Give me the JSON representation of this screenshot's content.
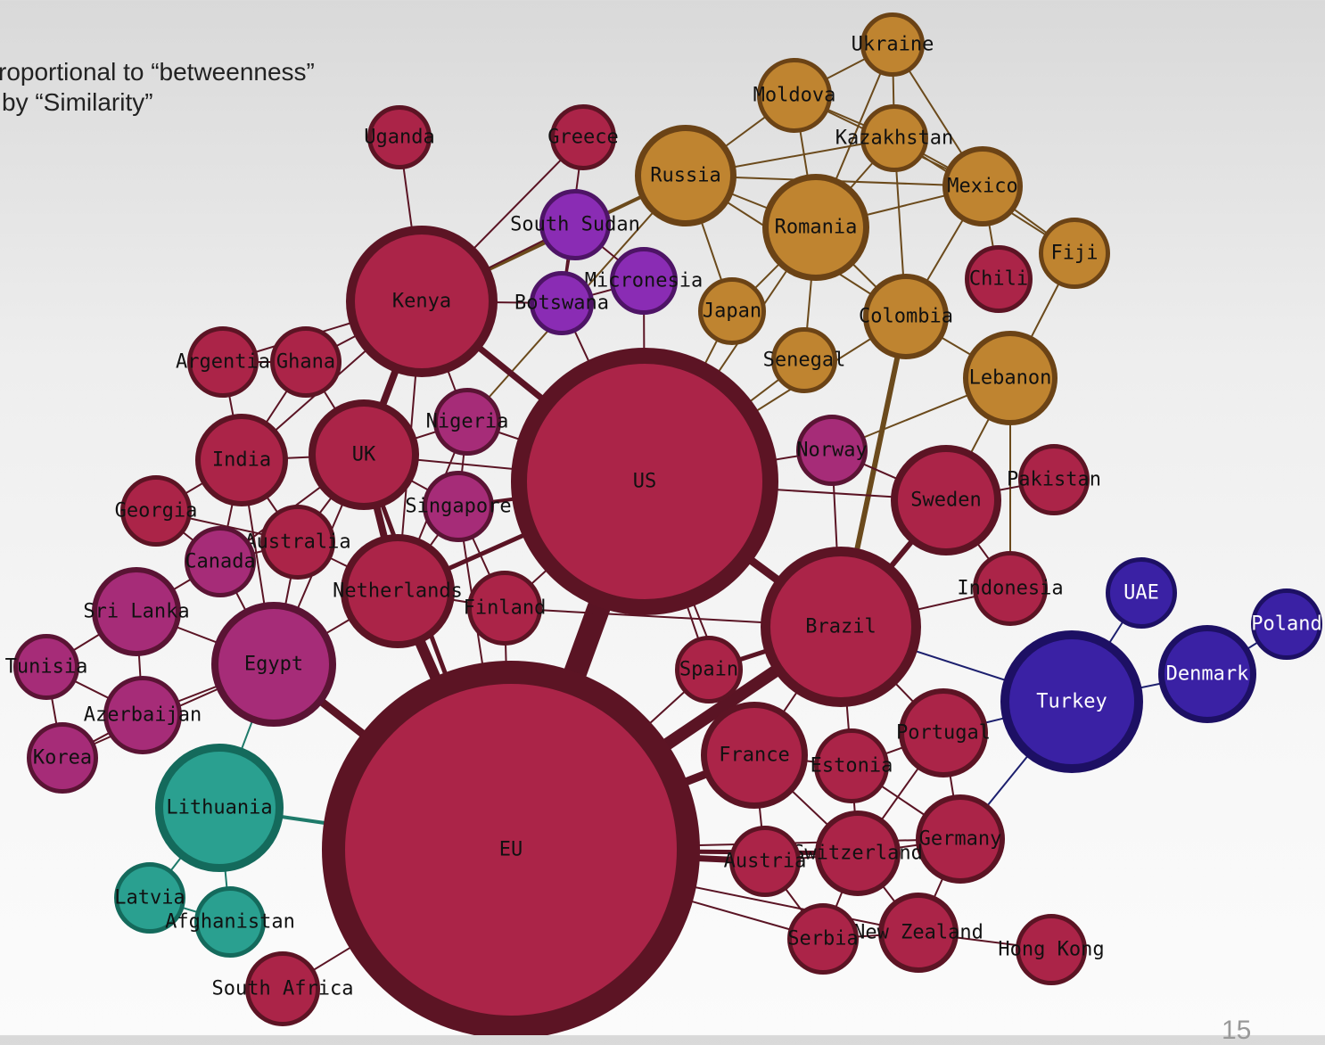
{
  "caption": {
    "line1": "roportional to “betweenness”",
    "line2": "by “Similarity”"
  },
  "page_number": "15",
  "colors": {
    "crimson": {
      "fill": "#ab2448",
      "stroke": "#5c1424"
    },
    "magenta": {
      "fill": "#a62c78",
      "stroke": "#5a1434"
    },
    "gold": {
      "fill": "#bf8430",
      "stroke": "#6b4316"
    },
    "purple": {
      "fill": "#8a2cb4",
      "stroke": "#4e1466"
    },
    "blue": {
      "fill": "#3a21a4",
      "stroke": "#1d1064"
    },
    "teal": {
      "fill": "#2aa090",
      "stroke": "#146a5c"
    },
    "edge": "#5a1424",
    "edge_gold": "#6b4a1c",
    "edge_teal": "#1e7a6a",
    "edge_blue": "#1c1f6e",
    "label": "#111111",
    "label_light": "#ffffff"
  },
  "nodes": [
    {
      "id": "Ukraine",
      "label": "Ukraine",
      "group": "gold"
    },
    {
      "id": "Moldova",
      "label": "Moldova",
      "group": "gold"
    },
    {
      "id": "Kazakhstan",
      "label": "Kazakhstan",
      "group": "gold"
    },
    {
      "id": "Russia",
      "label": "Russia",
      "group": "gold"
    },
    {
      "id": "Mexico",
      "label": "Mexico",
      "group": "gold"
    },
    {
      "id": "Romania",
      "label": "Romania",
      "group": "gold"
    },
    {
      "id": "Fiji",
      "label": "Fiji",
      "group": "gold"
    },
    {
      "id": "Japan",
      "label": "Japan",
      "group": "gold"
    },
    {
      "id": "Colombia",
      "label": "Colombia",
      "group": "gold"
    },
    {
      "id": "Senegal",
      "label": "Senegal",
      "group": "gold"
    },
    {
      "id": "Lebanon",
      "label": "Lebanon",
      "group": "gold"
    },
    {
      "id": "Uganda",
      "label": "Uganda",
      "group": "crimson"
    },
    {
      "id": "Greece",
      "label": "Greece",
      "group": "crimson"
    },
    {
      "id": "SouthSudan",
      "label": "South Sudan",
      "group": "purple"
    },
    {
      "id": "Micronesia",
      "label": "Micronesia",
      "group": "purple"
    },
    {
      "id": "Botswana",
      "label": "Botswana",
      "group": "purple"
    },
    {
      "id": "Kenya",
      "label": "Kenya",
      "group": "crimson"
    },
    {
      "id": "Chili",
      "label": "Chili",
      "group": "crimson"
    },
    {
      "id": "Argentia",
      "label": "Argentia",
      "group": "crimson"
    },
    {
      "id": "Ghana",
      "label": "Ghana",
      "group": "crimson"
    },
    {
      "id": "India",
      "label": "India",
      "group": "crimson"
    },
    {
      "id": "UK",
      "label": "UK",
      "group": "crimson"
    },
    {
      "id": "Nigeria",
      "label": "Nigeria",
      "group": "magenta"
    },
    {
      "id": "US",
      "label": "US",
      "group": "crimson"
    },
    {
      "id": "Norway",
      "label": "Norway",
      "group": "magenta"
    },
    {
      "id": "Pakistan",
      "label": "Pakistan",
      "group": "crimson"
    },
    {
      "id": "Sweden",
      "label": "Sweden",
      "group": "crimson"
    },
    {
      "id": "Georgia",
      "label": "Georgia",
      "group": "crimson"
    },
    {
      "id": "Singapore",
      "label": "Singapore",
      "group": "magenta"
    },
    {
      "id": "Australia",
      "label": "Australia",
      "group": "crimson"
    },
    {
      "id": "Canada",
      "label": "Canada",
      "group": "magenta"
    },
    {
      "id": "Netherlands",
      "label": "Netherlands",
      "group": "crimson"
    },
    {
      "id": "Finland",
      "label": "Finland",
      "group": "crimson"
    },
    {
      "id": "Indonesia",
      "label": "Indonesia",
      "group": "crimson"
    },
    {
      "id": "UAE",
      "label": "UAE",
      "group": "blue"
    },
    {
      "id": "Poland",
      "label": "Poland",
      "group": "blue"
    },
    {
      "id": "SriLanka",
      "label": "Sri Lanka",
      "group": "magenta"
    },
    {
      "id": "Egypt",
      "label": "Egypt",
      "group": "magenta"
    },
    {
      "id": "Brazil",
      "label": "Brazil",
      "group": "crimson"
    },
    {
      "id": "Tunisia",
      "label": "Tunisia",
      "group": "magenta"
    },
    {
      "id": "Spain",
      "label": "Spain",
      "group": "crimson"
    },
    {
      "id": "Denmark",
      "label": "Denmark",
      "group": "blue"
    },
    {
      "id": "Turkey",
      "label": "Turkey",
      "group": "blue"
    },
    {
      "id": "Azerbaijan",
      "label": "Azerbaijan",
      "group": "magenta"
    },
    {
      "id": "Portugal",
      "label": "Portugal",
      "group": "crimson"
    },
    {
      "id": "Korea",
      "label": "Korea",
      "group": "magenta"
    },
    {
      "id": "France",
      "label": "France",
      "group": "crimson"
    },
    {
      "id": "Estonia",
      "label": "Estonia",
      "group": "crimson"
    },
    {
      "id": "Lithuania",
      "label": "Lithuania",
      "group": "teal"
    },
    {
      "id": "EU",
      "label": "EU",
      "group": "crimson"
    },
    {
      "id": "Germany",
      "label": "Germany",
      "group": "crimson"
    },
    {
      "id": "Austria",
      "label": "Austria",
      "group": "crimson"
    },
    {
      "id": "Switzerland",
      "label": "Switzerland",
      "group": "crimson"
    },
    {
      "id": "Latvia",
      "label": "Latvia",
      "group": "teal"
    },
    {
      "id": "Afghanistan",
      "label": "Afghanistan",
      "group": "teal"
    },
    {
      "id": "Serbia",
      "label": "Serbia",
      "group": "crimson"
    },
    {
      "id": "NewZealand",
      "label": "New Zealand",
      "group": "crimson"
    },
    {
      "id": "HongKong",
      "label": "Hong Kong",
      "group": "crimson"
    },
    {
      "id": "SouthAfrica",
      "label": "South Africa",
      "group": "crimson"
    }
  ],
  "edges": [
    [
      "Ukraine",
      "Moldova"
    ],
    [
      "Ukraine",
      "Kazakhstan"
    ],
    [
      "Ukraine",
      "Romania"
    ],
    [
      "Ukraine",
      "Mexico"
    ],
    [
      "Moldova",
      "Kazakhstan"
    ],
    [
      "Moldova",
      "Russia"
    ],
    [
      "Moldova",
      "Romania"
    ],
    [
      "Moldova",
      "Mexico"
    ],
    [
      "Kazakhstan",
      "Russia"
    ],
    [
      "Kazakhstan",
      "Romania"
    ],
    [
      "Kazakhstan",
      "Mexico"
    ],
    [
      "Kazakhstan",
      "Colombia"
    ],
    [
      "Kazakhstan",
      "Fiji"
    ],
    [
      "Russia",
      "Romania"
    ],
    [
      "Russia",
      "Japan"
    ],
    [
      "Russia",
      "Colombia"
    ],
    [
      "Russia",
      "Mexico"
    ],
    [
      "Russia",
      "Kenya"
    ],
    [
      "Russia",
      "Nigeria"
    ],
    [
      "Romania",
      "Mexico"
    ],
    [
      "Romania",
      "Japan"
    ],
    [
      "Romania",
      "Senegal"
    ],
    [
      "Romania",
      "Colombia"
    ],
    [
      "Romania",
      "US"
    ],
    [
      "Mexico",
      "Colombia"
    ],
    [
      "Mexico",
      "Fiji"
    ],
    [
      "Mexico",
      "Chili"
    ],
    [
      "Fiji",
      "Lebanon"
    ],
    [
      "Colombia",
      "Lebanon"
    ],
    [
      "Colombia",
      "Brazil"
    ],
    [
      "Colombia",
      "US"
    ],
    [
      "Japan",
      "US"
    ],
    [
      "Senegal",
      "US"
    ],
    [
      "Lebanon",
      "Norway"
    ],
    [
      "Lebanon",
      "Indonesia"
    ],
    [
      "Lebanon",
      "Sweden"
    ],
    [
      "Uganda",
      "Kenya"
    ],
    [
      "Greece",
      "Botswana"
    ],
    [
      "Greece",
      "Kenya"
    ],
    [
      "SouthSudan",
      "Botswana"
    ],
    [
      "SouthSudan",
      "Micronesia"
    ],
    [
      "SouthSudan",
      "Kenya"
    ],
    [
      "Micronesia",
      "Botswana"
    ],
    [
      "Micronesia",
      "US"
    ],
    [
      "Botswana",
      "US"
    ],
    [
      "Botswana",
      "Kenya"
    ],
    [
      "Kenya",
      "US"
    ],
    [
      "Kenya",
      "UK"
    ],
    [
      "Kenya",
      "India"
    ],
    [
      "Kenya",
      "Ghana"
    ],
    [
      "Kenya",
      "Nigeria"
    ],
    [
      "Kenya",
      "Netherlands"
    ],
    [
      "Kenya",
      "Argentia"
    ],
    [
      "Argentia",
      "Ghana"
    ],
    [
      "Argentia",
      "India"
    ],
    [
      "Ghana",
      "UK"
    ],
    [
      "Ghana",
      "India"
    ],
    [
      "India",
      "UK"
    ],
    [
      "India",
      "Georgia"
    ],
    [
      "India",
      "Canada"
    ],
    [
      "India",
      "Australia"
    ],
    [
      "India",
      "Egypt"
    ],
    [
      "UK",
      "US"
    ],
    [
      "UK",
      "Netherlands"
    ],
    [
      "UK",
      "Australia"
    ],
    [
      "UK",
      "Singapore"
    ],
    [
      "UK",
      "EU"
    ],
    [
      "UK",
      "Nigeria"
    ],
    [
      "UK",
      "Canada"
    ],
    [
      "UK",
      "Egypt"
    ],
    [
      "Nigeria",
      "US"
    ],
    [
      "Nigeria",
      "Singapore"
    ],
    [
      "Nigeria",
      "Netherlands"
    ],
    [
      "US",
      "EU"
    ],
    [
      "US",
      "Brazil"
    ],
    [
      "US",
      "Netherlands"
    ],
    [
      "US",
      "Singapore"
    ],
    [
      "US",
      "Finland"
    ],
    [
      "US",
      "Norway"
    ],
    [
      "US",
      "Spain"
    ],
    [
      "US",
      "France"
    ],
    [
      "US",
      "Sweden"
    ],
    [
      "Norway",
      "Sweden"
    ],
    [
      "Norway",
      "Brazil"
    ],
    [
      "Pakistan",
      "Sweden"
    ],
    [
      "Sweden",
      "Brazil"
    ],
    [
      "Sweden",
      "Indonesia"
    ],
    [
      "Georgia",
      "Canada"
    ],
    [
      "Georgia",
      "Australia"
    ],
    [
      "Singapore",
      "Netherlands"
    ],
    [
      "Singapore",
      "Finland"
    ],
    [
      "Singapore",
      "EU"
    ],
    [
      "Australia",
      "Canada"
    ],
    [
      "Australia",
      "Netherlands"
    ],
    [
      "Australia",
      "Egypt"
    ],
    [
      "Canada",
      "Egypt"
    ],
    [
      "Canada",
      "SriLanka"
    ],
    [
      "Netherlands",
      "EU"
    ],
    [
      "Netherlands",
      "Finland"
    ],
    [
      "Netherlands",
      "Egypt"
    ],
    [
      "Finland",
      "EU"
    ],
    [
      "Finland",
      "Brazil"
    ],
    [
      "Indonesia",
      "Brazil"
    ],
    [
      "UAE",
      "Turkey"
    ],
    [
      "Poland",
      "Denmark"
    ],
    [
      "Denmark",
      "Turkey"
    ],
    [
      "SriLanka",
      "Egypt"
    ],
    [
      "SriLanka",
      "Tunisia"
    ],
    [
      "SriLanka",
      "Azerbaijan"
    ],
    [
      "Egypt",
      "EU"
    ],
    [
      "Egypt",
      "Azerbaijan"
    ],
    [
      "Egypt",
      "Lithuania"
    ],
    [
      "Egypt",
      "Korea"
    ],
    [
      "Brazil",
      "EU"
    ],
    [
      "Brazil",
      "Spain"
    ],
    [
      "Brazil",
      "France"
    ],
    [
      "Brazil",
      "Portugal"
    ],
    [
      "Brazil",
      "Turkey"
    ],
    [
      "Brazil",
      "Estonia"
    ],
    [
      "Tunisia",
      "Azerbaijan"
    ],
    [
      "Tunisia",
      "Korea"
    ],
    [
      "Spain",
      "EU"
    ],
    [
      "Turkey",
      "Portugal"
    ],
    [
      "Turkey",
      "Germany"
    ],
    [
      "Azerbaijan",
      "Korea"
    ],
    [
      "Portugal",
      "Estonia"
    ],
    [
      "Portugal",
      "Germany"
    ],
    [
      "Portugal",
      "Switzerland"
    ],
    [
      "France",
      "EU"
    ],
    [
      "France",
      "Estonia"
    ],
    [
      "France",
      "Austria"
    ],
    [
      "France",
      "Switzerland"
    ],
    [
      "Estonia",
      "Switzerland"
    ],
    [
      "Estonia",
      "Germany"
    ],
    [
      "Lithuania",
      "EU"
    ],
    [
      "Lithuania",
      "Latvia"
    ],
    [
      "Lithuania",
      "Afghanistan"
    ],
    [
      "Latvia",
      "Afghanistan"
    ],
    [
      "EU",
      "Austria"
    ],
    [
      "EU",
      "Switzerland"
    ],
    [
      "EU",
      "Serbia"
    ],
    [
      "EU",
      "NewZealand"
    ],
    [
      "EU",
      "SouthAfrica"
    ],
    [
      "EU",
      "Germany"
    ],
    [
      "Germany",
      "Switzerland"
    ],
    [
      "Germany",
      "NewZealand"
    ],
    [
      "Austria",
      "Switzerland"
    ],
    [
      "Austria",
      "Serbia"
    ],
    [
      "Switzerland",
      "Serbia"
    ],
    [
      "Switzerland",
      "NewZealand"
    ],
    [
      "Serbia",
      "NewZealand"
    ],
    [
      "NewZealand",
      "HongKong"
    ]
  ]
}
